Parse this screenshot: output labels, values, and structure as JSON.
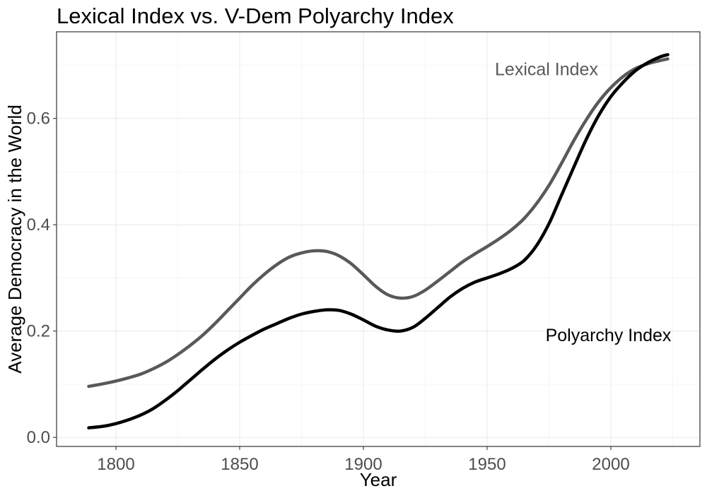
{
  "chart_data": {
    "type": "line",
    "title": "Lexical Index vs. V-Dem Polyarchy Index",
    "xlabel": "Year",
    "ylabel": "Average Democracy in the World",
    "xlim": [
      1776,
      2036
    ],
    "ylim": [
      -0.017,
      0.763
    ],
    "x_ticks": [
      1800,
      1850,
      1900,
      1950,
      2000
    ],
    "y_ticks": [
      0.0,
      0.2,
      0.4,
      0.6
    ],
    "x_tick_labels": [
      "1800",
      "1850",
      "1900",
      "1950",
      "2000"
    ],
    "y_tick_labels": [
      "0.0",
      "0.2",
      "0.4",
      "0.6"
    ],
    "grid": true,
    "legend": "none (direct labels)",
    "series": [
      {
        "name": "Lexical Index",
        "color": "#595959",
        "x": [
          1789,
          1795,
          1800,
          1805,
          1810,
          1815,
          1820,
          1825,
          1830,
          1835,
          1840,
          1845,
          1850,
          1855,
          1860,
          1865,
          1870,
          1875,
          1880,
          1885,
          1890,
          1895,
          1900,
          1905,
          1910,
          1915,
          1920,
          1925,
          1930,
          1935,
          1940,
          1945,
          1950,
          1955,
          1960,
          1965,
          1970,
          1975,
          1980,
          1985,
          1990,
          1995,
          2000,
          2005,
          2010,
          2015,
          2020,
          2023
        ],
        "values": [
          0.096,
          0.101,
          0.106,
          0.112,
          0.119,
          0.129,
          0.141,
          0.156,
          0.173,
          0.192,
          0.214,
          0.238,
          0.262,
          0.286,
          0.307,
          0.325,
          0.339,
          0.347,
          0.351,
          0.35,
          0.342,
          0.327,
          0.306,
          0.284,
          0.268,
          0.262,
          0.265,
          0.277,
          0.294,
          0.312,
          0.33,
          0.345,
          0.359,
          0.374,
          0.391,
          0.412,
          0.44,
          0.474,
          0.515,
          0.558,
          0.597,
          0.631,
          0.658,
          0.679,
          0.694,
          0.703,
          0.709,
          0.712
        ]
      },
      {
        "name": "Polyarchy Index",
        "color": "#000000",
        "x": [
          1789,
          1795,
          1800,
          1805,
          1810,
          1815,
          1820,
          1825,
          1830,
          1835,
          1840,
          1845,
          1850,
          1855,
          1860,
          1865,
          1870,
          1875,
          1880,
          1885,
          1890,
          1895,
          1900,
          1905,
          1910,
          1915,
          1920,
          1925,
          1930,
          1935,
          1940,
          1945,
          1950,
          1955,
          1960,
          1965,
          1970,
          1975,
          1980,
          1985,
          1990,
          1995,
          2000,
          2005,
          2010,
          2015,
          2020,
          2023
        ],
        "values": [
          0.018,
          0.021,
          0.026,
          0.033,
          0.042,
          0.054,
          0.07,
          0.088,
          0.108,
          0.128,
          0.147,
          0.164,
          0.179,
          0.192,
          0.204,
          0.214,
          0.224,
          0.232,
          0.237,
          0.24,
          0.239,
          0.232,
          0.221,
          0.209,
          0.202,
          0.2,
          0.207,
          0.224,
          0.244,
          0.264,
          0.28,
          0.292,
          0.3,
          0.308,
          0.318,
          0.333,
          0.361,
          0.402,
          0.455,
          0.508,
          0.56,
          0.605,
          0.641,
          0.668,
          0.69,
          0.705,
          0.716,
          0.72
        ]
      }
    ],
    "annotations": [
      {
        "label": "Lexical Index",
        "x": 1974,
        "y": 0.69,
        "color": "#595959"
      },
      {
        "label": "Polyarchy Index",
        "x": 1999,
        "y": 0.19,
        "color": "#000000"
      }
    ]
  }
}
